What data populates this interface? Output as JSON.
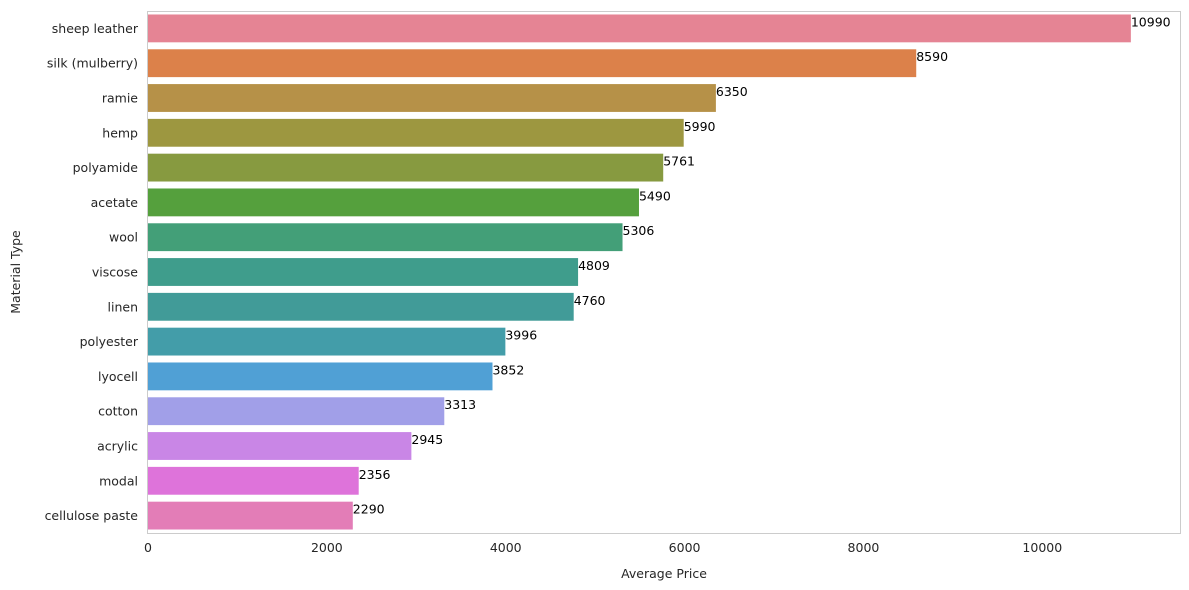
{
  "chart_data": {
    "type": "bar",
    "orientation": "horizontal",
    "title": "",
    "xlabel": "Average Price",
    "ylabel": "Material Type",
    "xlim": [
      0,
      11539.5
    ],
    "xticks": [
      0,
      2000,
      4000,
      6000,
      8000,
      10000
    ],
    "grid": false,
    "categories": [
      "sheep leather",
      "silk (mulberry)",
      "ramie",
      "hemp",
      "polyamide",
      "acetate",
      "wool",
      "viscose",
      "linen",
      "polyester",
      "lyocell",
      "cotton",
      "acrylic",
      "modal",
      "cellulose paste"
    ],
    "values": [
      10990,
      8590,
      6350,
      5990,
      5761,
      5490,
      5306,
      4809,
      4760,
      3996,
      3852,
      3313,
      2945,
      2356,
      2290
    ],
    "data_labels": [
      "10990",
      "8590",
      "6350",
      "5990",
      "5761",
      "5490",
      "5306",
      "4809",
      "4760",
      "3996",
      "3852",
      "3313",
      "2945",
      "2356",
      "2290"
    ],
    "colors": [
      "#e58494",
      "#dc814a",
      "#b69148",
      "#9d9740",
      "#879a40",
      "#55a03d",
      "#439f78",
      "#3f9d8c",
      "#419b98",
      "#439da9",
      "#50a0d5",
      "#a19fe8",
      "#c986e6",
      "#de73da",
      "#e37db7"
    ]
  }
}
